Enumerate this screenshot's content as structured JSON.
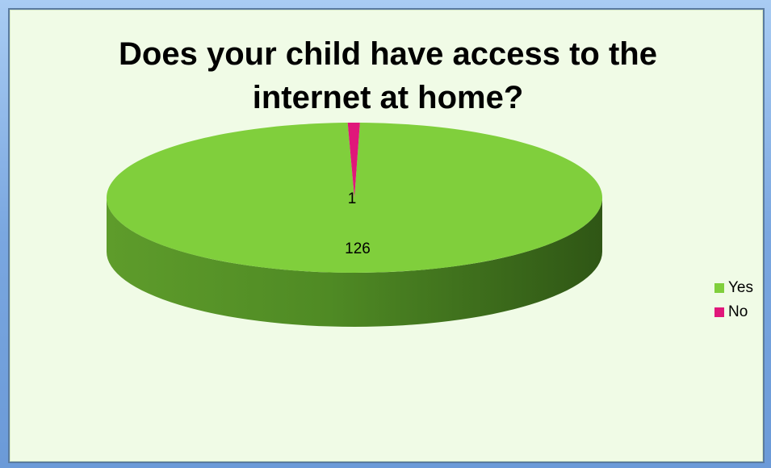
{
  "chart_data": {
    "type": "pie",
    "title": "Does your child have access to the internet at home?",
    "title_lines": [
      "Does your child have access to the",
      "internet at home?"
    ],
    "categories": [
      "Yes",
      "No"
    ],
    "values": [
      126,
      1
    ],
    "data_labels": [
      "126",
      "1"
    ],
    "colors": [
      "#80cf3c",
      "#e0177a"
    ],
    "side_colors": [
      "#4f8a24",
      "#9a0f55"
    ],
    "legend_position": "right",
    "style": "3d"
  }
}
